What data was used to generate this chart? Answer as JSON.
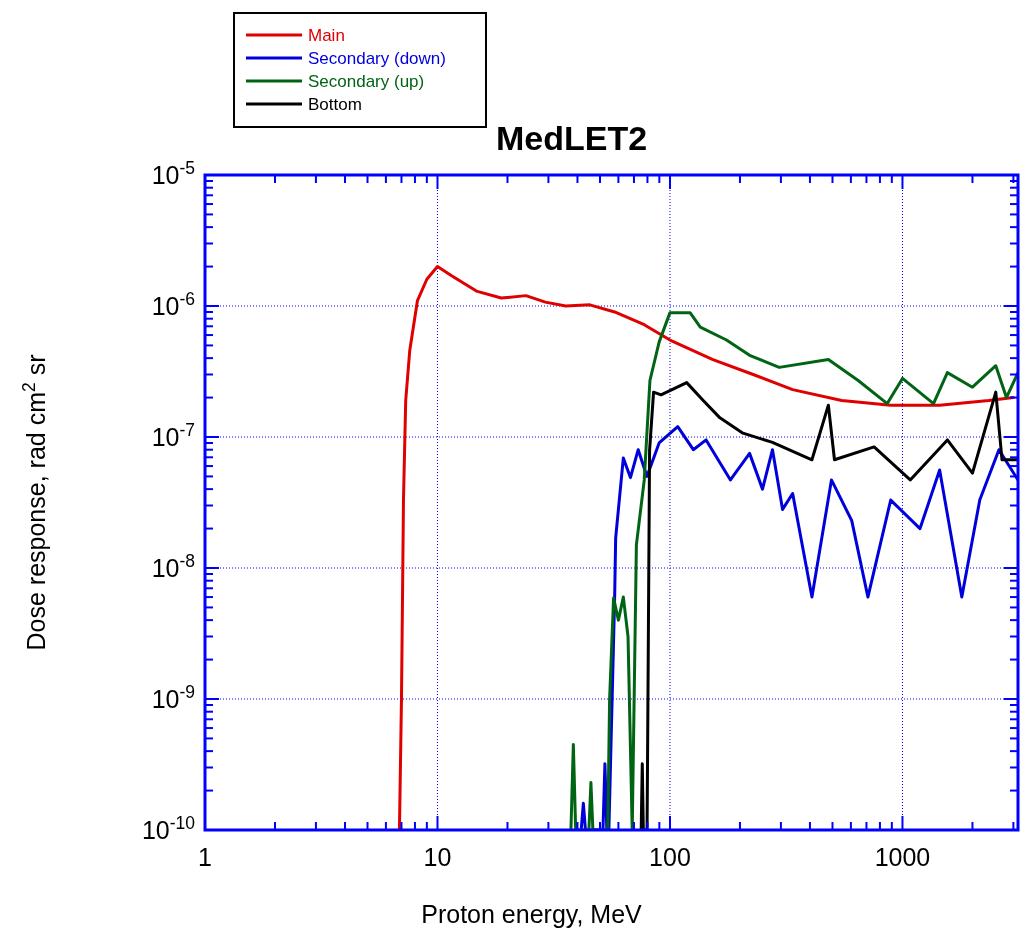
{
  "chart_data": {
    "type": "line",
    "title": "MedLET2",
    "xlabel": "Proton energy, MeV",
    "ylabel": "Dose response, rad cm$^{2}$ sr",
    "log": "xy",
    "grid": true,
    "legend": "top left",
    "xlim": [
      1,
      3140
    ],
    "ylim": [
      1e-10,
      1e-05
    ],
    "xticks": [
      1,
      {
        "value": 2,
        "label": null
      },
      {
        "value": 3,
        "label": null
      },
      {
        "value": 4,
        "label": null
      },
      {
        "value": 5,
        "label": null
      },
      {
        "value": 6,
        "label": null
      },
      {
        "value": 7,
        "label": null
      },
      {
        "value": 8,
        "label": null
      },
      {
        "value": 9,
        "label": null
      },
      10,
      {
        "value": 20,
        "label": null
      },
      {
        "value": 30,
        "label": null
      },
      {
        "value": 40,
        "label": null
      },
      {
        "value": 50,
        "label": null
      },
      {
        "value": 60,
        "label": null
      },
      {
        "value": 70,
        "label": null
      },
      {
        "value": 80,
        "label": null
      },
      {
        "value": 90,
        "label": null
      },
      100,
      {
        "value": 200,
        "label": null
      },
      {
        "value": 300,
        "label": null
      },
      {
        "value": 400,
        "label": null
      },
      {
        "value": 500,
        "label": null
      },
      {
        "value": 600,
        "label": null
      },
      {
        "value": 700,
        "label": null
      },
      {
        "value": 800,
        "label": null
      },
      {
        "value": 900,
        "label": null
      },
      1000,
      {
        "value": 2000,
        "label": null
      },
      {
        "value": 3000,
        "label": null
      }
    ],
    "yticks": [
      {
        "value": 1e-10,
        "label": "10$^{-10}$"
      },
      {
        "value": 2e-10,
        "label": null
      },
      {
        "value": 3e-10,
        "label": null
      },
      {
        "value": 4e-10,
        "label": null
      },
      {
        "value": 5e-10,
        "label": null
      },
      {
        "value": 6e-10,
        "label": null
      },
      {
        "value": 7e-10,
        "label": null
      },
      {
        "value": 8e-10,
        "label": null
      },
      {
        "value": 9e-10,
        "label": null
      },
      {
        "value": 1e-09,
        "label": "10$^{-9}$"
      },
      {
        "value": 2e-09,
        "label": null
      },
      {
        "value": 3e-09,
        "label": null
      },
      {
        "value": 4e-09,
        "label": null
      },
      {
        "value": 5e-09,
        "label": null
      },
      {
        "value": 6e-09,
        "label": null
      },
      {
        "value": 7e-09,
        "label": null
      },
      {
        "value": 8e-09,
        "label": null
      },
      {
        "value": 9e-09,
        "label": null
      },
      {
        "value": 1e-08,
        "label": "10$^{-8}$"
      },
      {
        "value": 2e-08,
        "label": null
      },
      {
        "value": 3e-08,
        "label": null
      },
      {
        "value": 4e-08,
        "label": null
      },
      {
        "value": 5e-08,
        "label": null
      },
      {
        "value": 6e-08,
        "label": null
      },
      {
        "value": 7e-08,
        "label": null
      },
      {
        "value": 8e-08,
        "label": null
      },
      {
        "value": 9e-08,
        "label": null
      },
      {
        "value": 1e-07,
        "label": "10$^{-7}$"
      },
      {
        "value": 2e-07,
        "label": null
      },
      {
        "value": 3e-07,
        "label": null
      },
      {
        "value": 4e-07,
        "label": null
      },
      {
        "value": 5e-07,
        "label": null
      },
      {
        "value": 6e-07,
        "label": null
      },
      {
        "value": 7e-07,
        "label": null
      },
      {
        "value": 8e-07,
        "label": null
      },
      {
        "value": 9e-07,
        "label": null
      },
      {
        "value": 1e-06,
        "label": "10$^{-6}$"
      },
      {
        "value": 2e-06,
        "label": null
      },
      {
        "value": 3e-06,
        "label": null
      },
      {
        "value": 4e-06,
        "label": null
      },
      {
        "value": 5e-06,
        "label": null
      },
      {
        "value": 6e-06,
        "label": null
      },
      {
        "value": 7e-06,
        "label": null
      },
      {
        "value": 8e-06,
        "label": null
      },
      {
        "value": 9e-06,
        "label": null
      },
      {
        "value": 1e-05,
        "label": "10$^{-5}$"
      }
    ],
    "series": [
      {
        "name": "Main",
        "color": "#e00000",
        "x": [
          6.86,
          7.0,
          7.07,
          7.14,
          7.3,
          7.6,
          8.2,
          9.0,
          10,
          11.5,
          14.7,
          18.8,
          24,
          29.1,
          35.6,
          45.2,
          57.8,
          77.5,
          100,
          153,
          228,
          337,
          548,
          890,
          1445,
          2350,
          3000
        ],
        "values": [
          1e-10,
          1e-09,
          5.7e-09,
          3.3e-08,
          1.9e-07,
          4.6e-07,
          1.1e-06,
          1.6e-06,
          2e-06,
          1.7e-06,
          1.3e-06,
          1.15e-06,
          1.2e-06,
          1.07e-06,
          1e-06,
          1.02e-06,
          9e-07,
          7.2e-07,
          5.5e-07,
          3.9e-07,
          3e-07,
          2.3e-07,
          1.9e-07,
          1.75e-07,
          1.75e-07,
          1.9e-07,
          2e-07
        ]
      },
      {
        "name": "Secondary (down)",
        "color": "#0000dd",
        "x": [
          41.5,
          42.4,
          43.3,
          51.5,
          52.5,
          53.5,
          54.6,
          57.8,
          58.4,
          63,
          67.6,
          73,
          79.6,
          89.8,
          108,
          126,
          143,
          182,
          220,
          250,
          276,
          305,
          337,
          408,
          495,
          605,
          710,
          890,
          1190,
          1445,
          1800,
          2150,
          2600,
          3140
        ],
        "values": [
          1e-10,
          1.6e-10,
          1e-10,
          1e-10,
          3.2e-10,
          1e-10,
          1e-10,
          5.9e-09,
          1.7e-08,
          6.9e-08,
          4.9e-08,
          8e-08,
          5e-08,
          9e-08,
          1.2e-07,
          8e-08,
          9.5e-08,
          4.7e-08,
          7.5e-08,
          4e-08,
          8e-08,
          2.8e-08,
          3.7e-08,
          6e-09,
          4.7e-08,
          2.3e-08,
          6e-09,
          3.3e-08,
          2e-08,
          5.6e-08,
          6e-09,
          3.3e-08,
          8e-08,
          4.7e-08
        ]
      },
      {
        "name": "Secondary (up)",
        "color": "#006414",
        "x": [
          37.5,
          38.4,
          39.3,
          44.8,
          45.7,
          46.6,
          54,
          55,
          57.2,
          60,
          63,
          66,
          68.8,
          71.7,
          77.5,
          82,
          89.8,
          100,
          122,
          135,
          175,
          220,
          295,
          480,
          645,
          860,
          1000,
          1360,
          1560,
          2000,
          2520,
          2800,
          3140
        ],
        "values": [
          1e-10,
          4.5e-10,
          1e-10,
          1e-10,
          2.3e-10,
          1e-10,
          1e-10,
          1e-09,
          5.9e-09,
          4e-09,
          6e-09,
          3e-09,
          1e-10,
          1.5e-08,
          4.7e-08,
          2.7e-07,
          5.3e-07,
          8.9e-07,
          8.9e-07,
          6.9e-07,
          5.5e-07,
          4.2e-07,
          3.4e-07,
          3.9e-07,
          2.7e-07,
          1.8e-07,
          2.8e-07,
          1.8e-07,
          3.1e-07,
          2.4e-07,
          3.5e-07,
          2e-07,
          3.1e-07
        ]
      },
      {
        "name": "Bottom",
        "color": "#000000",
        "x": [
          75.2,
          76,
          76.8,
          79.7,
          80.5,
          81.7,
          85,
          91.5,
          118,
          139,
          164,
          206,
          276,
          408,
          480,
          510,
          755,
          1080,
          1560,
          2000,
          2520,
          2680,
          3140
        ],
        "values": [
          1e-10,
          3.2e-10,
          1e-10,
          1e-10,
          1.4e-09,
          7.9e-08,
          2.2e-07,
          2.1e-07,
          2.6e-07,
          1.9e-07,
          1.4e-07,
          1.07e-07,
          9.1e-08,
          6.7e-08,
          1.75e-07,
          6.7e-08,
          8.4e-08,
          4.7e-08,
          9.5e-08,
          5.3e-08,
          2.2e-07,
          6.7e-08,
          6.7e-08
        ]
      }
    ]
  }
}
